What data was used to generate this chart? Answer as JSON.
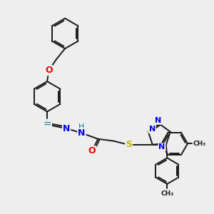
{
  "bg_color": "#eeeeee",
  "bond_color": "#1a1a1a",
  "bond_width": 1.4,
  "atom_colors": {
    "N": "#0000ee",
    "O": "#ee0000",
    "S": "#bbbb00",
    "H_teal": "#008080",
    "C_imine": "#008080"
  },
  "figsize": [
    3.0,
    3.0
  ],
  "dpi": 100,
  "xlim": [
    0,
    10
  ],
  "ylim": [
    0,
    10
  ]
}
